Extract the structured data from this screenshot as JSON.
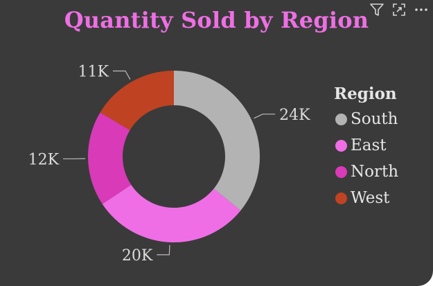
{
  "colors": {
    "background": "#3a3a3a",
    "title": "#ee6fe4",
    "label": "#dcdcdc",
    "leader": "#bdbdbd"
  },
  "toolbar": {
    "filter_icon": "filter-icon",
    "focus_icon": "focus-mode-icon",
    "more_icon": "more-options-icon"
  },
  "chart_data": {
    "type": "donut",
    "title": "Quantity Sold by Region",
    "legend_title": "Region",
    "legend_position": "right",
    "slices": [
      {
        "name": "South",
        "value": 24000,
        "label": "24K",
        "color": "#b3b3b3"
      },
      {
        "name": "East",
        "value": 20000,
        "label": "20K",
        "color": "#ef6ee6"
      },
      {
        "name": "North",
        "value": 12000,
        "label": "12K",
        "color": "#d83ab8"
      },
      {
        "name": "West",
        "value": 11000,
        "label": "11K",
        "color": "#bf4322"
      }
    ]
  }
}
